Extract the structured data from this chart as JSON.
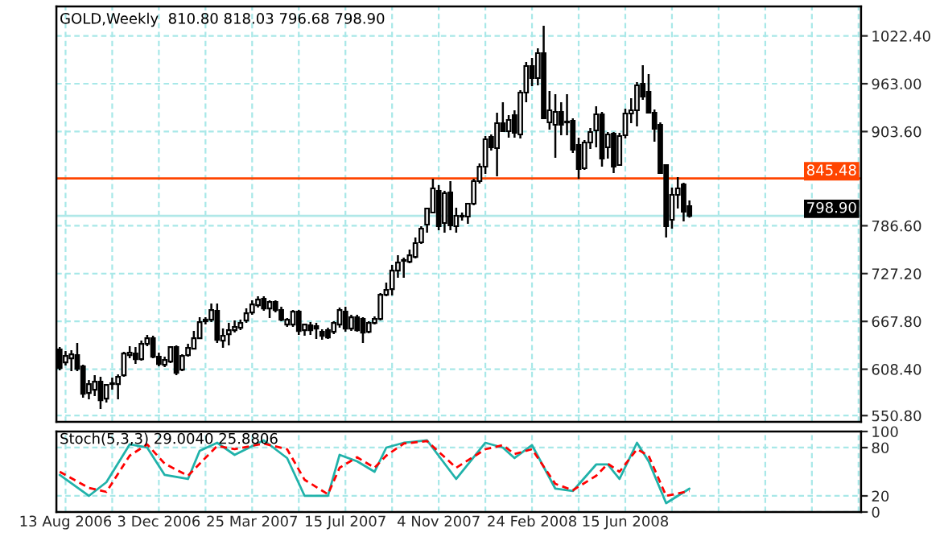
{
  "chart_data": [
    {
      "type": "candlestick",
      "title": "GOLD,Weekly  810.80 818.03 796.68 798.90",
      "color": "#000000",
      "x": [
        "2006-08-06",
        "2006-08-13",
        "2006-08-20",
        "2006-08-27",
        "2006-09-03",
        "2006-09-10",
        "2006-09-17",
        "2006-09-24",
        "2006-10-01",
        "2006-10-08",
        "2006-10-15",
        "2006-10-22",
        "2006-10-29",
        "2006-11-05",
        "2006-11-12",
        "2006-11-19",
        "2006-11-26",
        "2006-12-03",
        "2006-12-10",
        "2006-12-17",
        "2006-12-24",
        "2006-12-31",
        "2007-01-07",
        "2007-01-14",
        "2007-01-21",
        "2007-01-28",
        "2007-02-04",
        "2007-02-11",
        "2007-02-18",
        "2007-02-25",
        "2007-03-04",
        "2007-03-11",
        "2007-03-18",
        "2007-03-25",
        "2007-04-01",
        "2007-04-08",
        "2007-04-15",
        "2007-04-22",
        "2007-04-29",
        "2007-05-06",
        "2007-05-13",
        "2007-05-20",
        "2007-05-27",
        "2007-06-03",
        "2007-06-10",
        "2007-06-17",
        "2007-06-24",
        "2007-07-01",
        "2007-07-08",
        "2007-07-15",
        "2007-07-22",
        "2007-07-29",
        "2007-08-05",
        "2007-08-12",
        "2007-08-19",
        "2007-08-26",
        "2007-09-02",
        "2007-09-09",
        "2007-09-16",
        "2007-09-23",
        "2007-09-30",
        "2007-10-07",
        "2007-10-14",
        "2007-10-21",
        "2007-10-28",
        "2007-11-04",
        "2007-11-11",
        "2007-11-18",
        "2007-11-25",
        "2007-12-02",
        "2007-12-09",
        "2007-12-16",
        "2007-12-23",
        "2007-12-30",
        "2008-01-06",
        "2008-01-13",
        "2008-01-20",
        "2008-01-27",
        "2008-02-03",
        "2008-02-10",
        "2008-02-17",
        "2008-02-24",
        "2008-03-02",
        "2008-03-09",
        "2008-03-16",
        "2008-03-23",
        "2008-03-30",
        "2008-04-06",
        "2008-04-13",
        "2008-04-20",
        "2008-04-27",
        "2008-05-04",
        "2008-05-11",
        "2008-05-18",
        "2008-05-25",
        "2008-06-01",
        "2008-06-08",
        "2008-06-15",
        "2008-06-22",
        "2008-06-29",
        "2008-07-06",
        "2008-07-13",
        "2008-07-20",
        "2008-07-27",
        "2008-08-03",
        "2008-08-10",
        "2008-08-17",
        "2008-08-24",
        "2008-08-31"
      ],
      "ohlc": [
        [
          633,
          636,
          607,
          610
        ],
        [
          617,
          631,
          613,
          625
        ],
        [
          622,
          632,
          606,
          627
        ],
        [
          626,
          641,
          606,
          609
        ],
        [
          612,
          614,
          573,
          578
        ],
        [
          579,
          595,
          571,
          590
        ],
        [
          583,
          601,
          575,
          593
        ],
        [
          593,
          599,
          559,
          570
        ],
        [
          572,
          589,
          567,
          589
        ],
        [
          590,
          598,
          583,
          591
        ],
        [
          590,
          602,
          571,
          599
        ],
        [
          601,
          630,
          599,
          628
        ],
        [
          626,
          637,
          622,
          629
        ],
        [
          628,
          636,
          615,
          621
        ],
        [
          621,
          644,
          619,
          640
        ],
        [
          640,
          651,
          637,
          647
        ],
        [
          647,
          650,
          622,
          624
        ],
        [
          624,
          629,
          612,
          615
        ],
        [
          614,
          624,
          611,
          620
        ],
        [
          618,
          637,
          616,
          636
        ],
        [
          636,
          638,
          601,
          604
        ],
        [
          608,
          627,
          606,
          625
        ],
        [
          626,
          640,
          624,
          635
        ],
        [
          634,
          656,
          633,
          647
        ],
        [
          647,
          673,
          646,
          667
        ],
        [
          668,
          673,
          664,
          670
        ],
        [
          670,
          690,
          667,
          682
        ],
        [
          681,
          690,
          641,
          645
        ],
        [
          644,
          659,
          635,
          650
        ],
        [
          652,
          666,
          638,
          657
        ],
        [
          657,
          669,
          654,
          661
        ],
        [
          660,
          670,
          657,
          666
        ],
        [
          669,
          684,
          666,
          678
        ],
        [
          679,
          694,
          676,
          689
        ],
        [
          688,
          699,
          685,
          695
        ],
        [
          696,
          699,
          681,
          684
        ],
        [
          684,
          694,
          672,
          692
        ],
        [
          692,
          694,
          679,
          682
        ],
        [
          682,
          686,
          668,
          670
        ],
        [
          664,
          672,
          661,
          670
        ],
        [
          664,
          682,
          661,
          680
        ],
        [
          680,
          682,
          651,
          656
        ],
        [
          657,
          665,
          650,
          664
        ],
        [
          663,
          667,
          651,
          657
        ],
        [
          662,
          666,
          646,
          659
        ],
        [
          655,
          658,
          645,
          650
        ],
        [
          657,
          660,
          646,
          648
        ],
        [
          655,
          668,
          652,
          666
        ],
        [
          664,
          685,
          660,
          682
        ],
        [
          680,
          686,
          655,
          659
        ],
        [
          659,
          676,
          656,
          673
        ],
        [
          673,
          676,
          655,
          657
        ],
        [
          671,
          673,
          641,
          654
        ],
        [
          655,
          668,
          653,
          666
        ],
        [
          666,
          674,
          664,
          671
        ],
        [
          671,
          703,
          669,
          701
        ],
        [
          701,
          716,
          699,
          707
        ],
        [
          708,
          738,
          700,
          731
        ],
        [
          731,
          750,
          722,
          741
        ],
        [
          743,
          747,
          722,
          744
        ],
        [
          742,
          757,
          740,
          750
        ],
        [
          748,
          772,
          746,
          765
        ],
        [
          766,
          786,
          764,
          783
        ],
        [
          788,
          808,
          778,
          808
        ],
        [
          803,
          845,
          802,
          833
        ],
        [
          830,
          837,
          781,
          786
        ],
        [
          790,
          830,
          778,
          827
        ],
        [
          828,
          842,
          781,
          787
        ],
        [
          786,
          809,
          778,
          799
        ],
        [
          798,
          803,
          793,
          799
        ],
        [
          798,
          814,
          789,
          814
        ],
        [
          814,
          845,
          812,
          842
        ],
        [
          842,
          864,
          839,
          860
        ],
        [
          860,
          898,
          851,
          894
        ],
        [
          897,
          900,
          880,
          884
        ],
        [
          883,
          927,
          848,
          914
        ],
        [
          914,
          940,
          903,
          904
        ],
        [
          904,
          924,
          896,
          918
        ],
        [
          924,
          930,
          896,
          902
        ],
        [
          900,
          955,
          895,
          952
        ],
        [
          952,
          990,
          940,
          985
        ],
        [
          985,
          995,
          960,
          970
        ],
        [
          970,
          1007,
          961,
          1001
        ],
        [
          1001,
          1035,
          920,
          920
        ],
        [
          915,
          954,
          906,
          930
        ],
        [
          912,
          950,
          871,
          928
        ],
        [
          928,
          940,
          899,
          912
        ],
        [
          916,
          950,
          899,
          915
        ],
        [
          917,
          920,
          877,
          881
        ],
        [
          887,
          896,
          845,
          857
        ],
        [
          858,
          893,
          856,
          890
        ],
        [
          890,
          908,
          882,
          903
        ],
        [
          905,
          935,
          884,
          925
        ],
        [
          925,
          928,
          860,
          870
        ],
        [
          884,
          903,
          870,
          900
        ],
        [
          901,
          903,
          852,
          860
        ],
        [
          862,
          902,
          862,
          898
        ],
        [
          899,
          932,
          895,
          926
        ],
        [
          926,
          945,
          914,
          930
        ],
        [
          930,
          965,
          910,
          961
        ],
        [
          963,
          986,
          943,
          947
        ],
        [
          953,
          975,
          927,
          927
        ],
        [
          927,
          931,
          891,
          907
        ],
        [
          912,
          915,
          851,
          852
        ],
        [
          862,
          862,
          772,
          786
        ],
        [
          794,
          834,
          783,
          825
        ],
        [
          825,
          847,
          808,
          833
        ],
        [
          838,
          840,
          792,
          804
        ],
        [
          810.8,
          818.03,
          796.68,
          798.9
        ]
      ],
      "xlim": [
        "2006-08-02",
        "2009-03-25"
      ],
      "ylim": [
        543,
        1059
      ],
      "yticks": [
        {
          "value": 550.8,
          "label": "550.80"
        },
        {
          "value": 608.4,
          "label": "608.40"
        },
        {
          "value": 667.8,
          "label": "667.80"
        },
        {
          "value": 727.2,
          "label": "727.20"
        },
        {
          "value": 786.6,
          "label": "786.60"
        },
        {
          "value": 903.6,
          "label": "903.60"
        },
        {
          "value": 963.0,
          "label": "963.00"
        },
        {
          "value": 1022.4,
          "label": "1022.40"
        }
      ],
      "tick_labels": "y",
      "grid": true,
      "ref_lines": [
        {
          "axis": "y",
          "value": 845.48,
          "label": "845.48",
          "color": "#ff4500"
        },
        {
          "axis": "y",
          "value": 798.9,
          "label": "798.90",
          "color": "#b0e8e8"
        }
      ]
    },
    {
      "type": "line",
      "title": "Stoch(5,3,3) 29.0040 25.8806",
      "grid": true,
      "xlim": [
        "2006-08-02",
        "2009-03-25"
      ],
      "xticks": [
        {
          "value": "2006-08-13",
          "label": "13 Aug 2006"
        },
        {
          "value": "2006-10-08",
          "label": null
        },
        {
          "value": "2006-12-03",
          "label": "3 Dec 2006"
        },
        {
          "value": "2007-01-28",
          "label": null
        },
        {
          "value": "2007-03-25",
          "label": "25 Mar 2007"
        },
        {
          "value": "2007-05-20",
          "label": null
        },
        {
          "value": "2007-07-15",
          "label": "15 Jul 2007"
        },
        {
          "value": "2007-09-09",
          "label": null
        },
        {
          "value": "2007-11-04",
          "label": "4 Nov 2007"
        },
        {
          "value": "2007-12-30",
          "label": null
        },
        {
          "value": "2008-02-24",
          "label": "24 Feb 2008"
        },
        {
          "value": "2008-04-20",
          "label": null
        },
        {
          "value": "2008-06-15",
          "label": "15 Jun 2008"
        },
        {
          "value": "2008-08-10",
          "label": null
        },
        {
          "value": "2008-10-05",
          "label": null
        },
        {
          "value": "2008-11-30",
          "label": null
        },
        {
          "value": "2009-01-25",
          "label": null
        },
        {
          "value": "2009-03-22",
          "label": null
        }
      ],
      "ylim": [
        0,
        100
      ],
      "yticks": [
        0,
        20,
        80,
        100
      ],
      "series": [
        {
          "color": "#20b2aa",
          "line_style": "solid",
          "x": [
            "2006-08-06",
            "2006-09-10",
            "2006-10-01",
            "2006-10-29",
            "2006-11-19",
            "2006-12-10",
            "2007-01-07",
            "2007-01-21",
            "2007-02-11",
            "2007-03-04",
            "2007-04-08",
            "2007-05-06",
            "2007-05-27",
            "2007-06-24",
            "2007-07-08",
            "2007-07-29",
            "2007-08-19",
            "2007-09-02",
            "2007-09-23",
            "2007-10-21",
            "2007-11-25",
            "2007-12-30",
            "2008-01-20",
            "2008-02-03",
            "2008-02-24",
            "2008-03-23",
            "2008-04-13",
            "2008-05-11",
            "2008-05-25",
            "2008-06-08",
            "2008-06-29",
            "2008-07-13",
            "2008-08-03",
            "2008-08-31"
          ],
          "values": [
            46,
            20,
            37,
            84,
            80,
            46,
            41,
            76,
            86,
            71,
            89,
            67,
            20,
            20,
            71,
            63,
            50,
            80,
            86,
            89,
            41,
            86,
            80,
            67,
            83,
            29,
            26,
            59,
            59,
            41,
            86,
            63,
            11,
            29
          ]
        },
        {
          "color": "#ff0000",
          "line_style": "dashed",
          "x": [
            "2006-08-06",
            "2006-09-10",
            "2006-10-01",
            "2006-10-29",
            "2006-11-19",
            "2006-12-10",
            "2007-01-07",
            "2007-01-21",
            "2007-02-11",
            "2007-03-04",
            "2007-04-08",
            "2007-05-06",
            "2007-05-27",
            "2007-06-24",
            "2007-07-08",
            "2007-07-29",
            "2007-08-19",
            "2007-09-02",
            "2007-09-23",
            "2007-10-21",
            "2007-11-25",
            "2007-12-30",
            "2008-01-20",
            "2008-02-03",
            "2008-02-24",
            "2008-03-23",
            "2008-04-13",
            "2008-05-11",
            "2008-05-25",
            "2008-06-08",
            "2008-06-29",
            "2008-07-13",
            "2008-08-03",
            "2008-08-31"
          ],
          "values": [
            50,
            30,
            25,
            70,
            84,
            60,
            45,
            60,
            82,
            78,
            85,
            78,
            40,
            22,
            55,
            68,
            55,
            70,
            85,
            88,
            55,
            78,
            83,
            72,
            78,
            35,
            27,
            45,
            60,
            50,
            78,
            70,
            20,
            26
          ]
        }
      ]
    }
  ]
}
